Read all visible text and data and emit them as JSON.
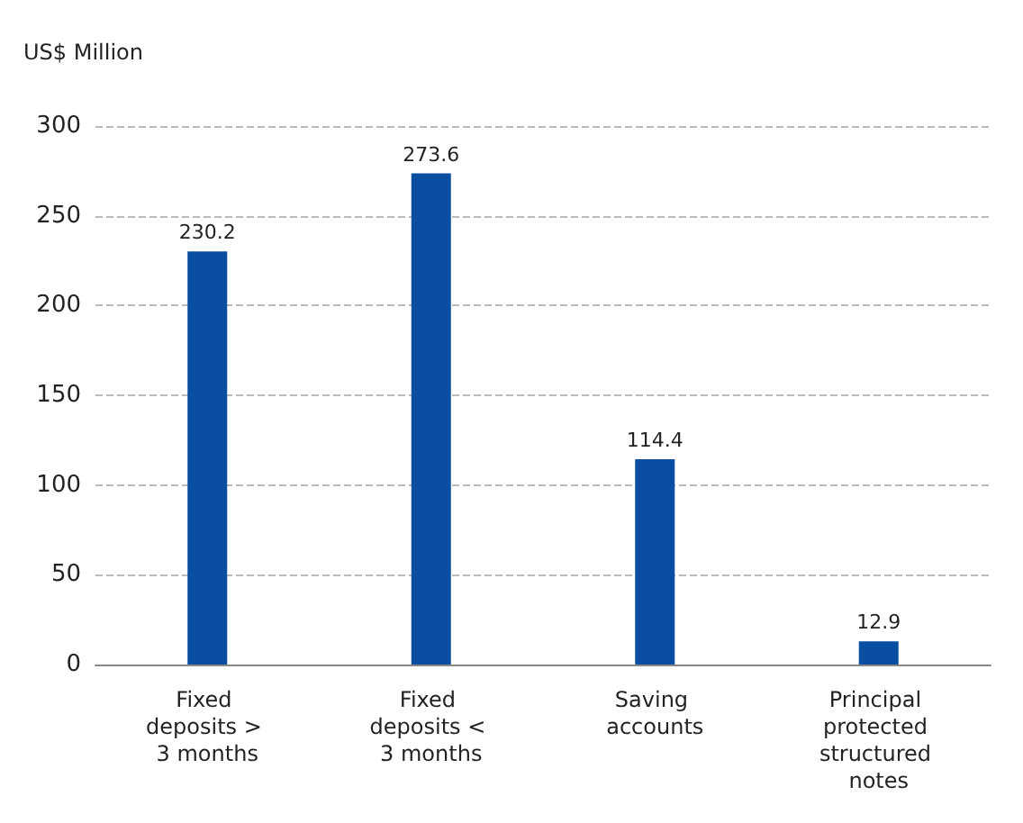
{
  "chart_data": {
    "type": "bar",
    "ylabel": "US$ Million",
    "categories": [
      "Fixed deposits > 3 months",
      "Fixed deposits < 3 months",
      "Saving accounts",
      "Principal protected structured notes"
    ],
    "values": [
      230.2,
      273.6,
      114.4,
      12.9
    ],
    "color": "#0a4ea2",
    "ylim": [
      0,
      300
    ],
    "yticks": [
      0,
      50,
      100,
      150,
      200,
      250,
      300
    ],
    "grid": "y",
    "line_style": "dashed",
    "data_labels": true
  }
}
